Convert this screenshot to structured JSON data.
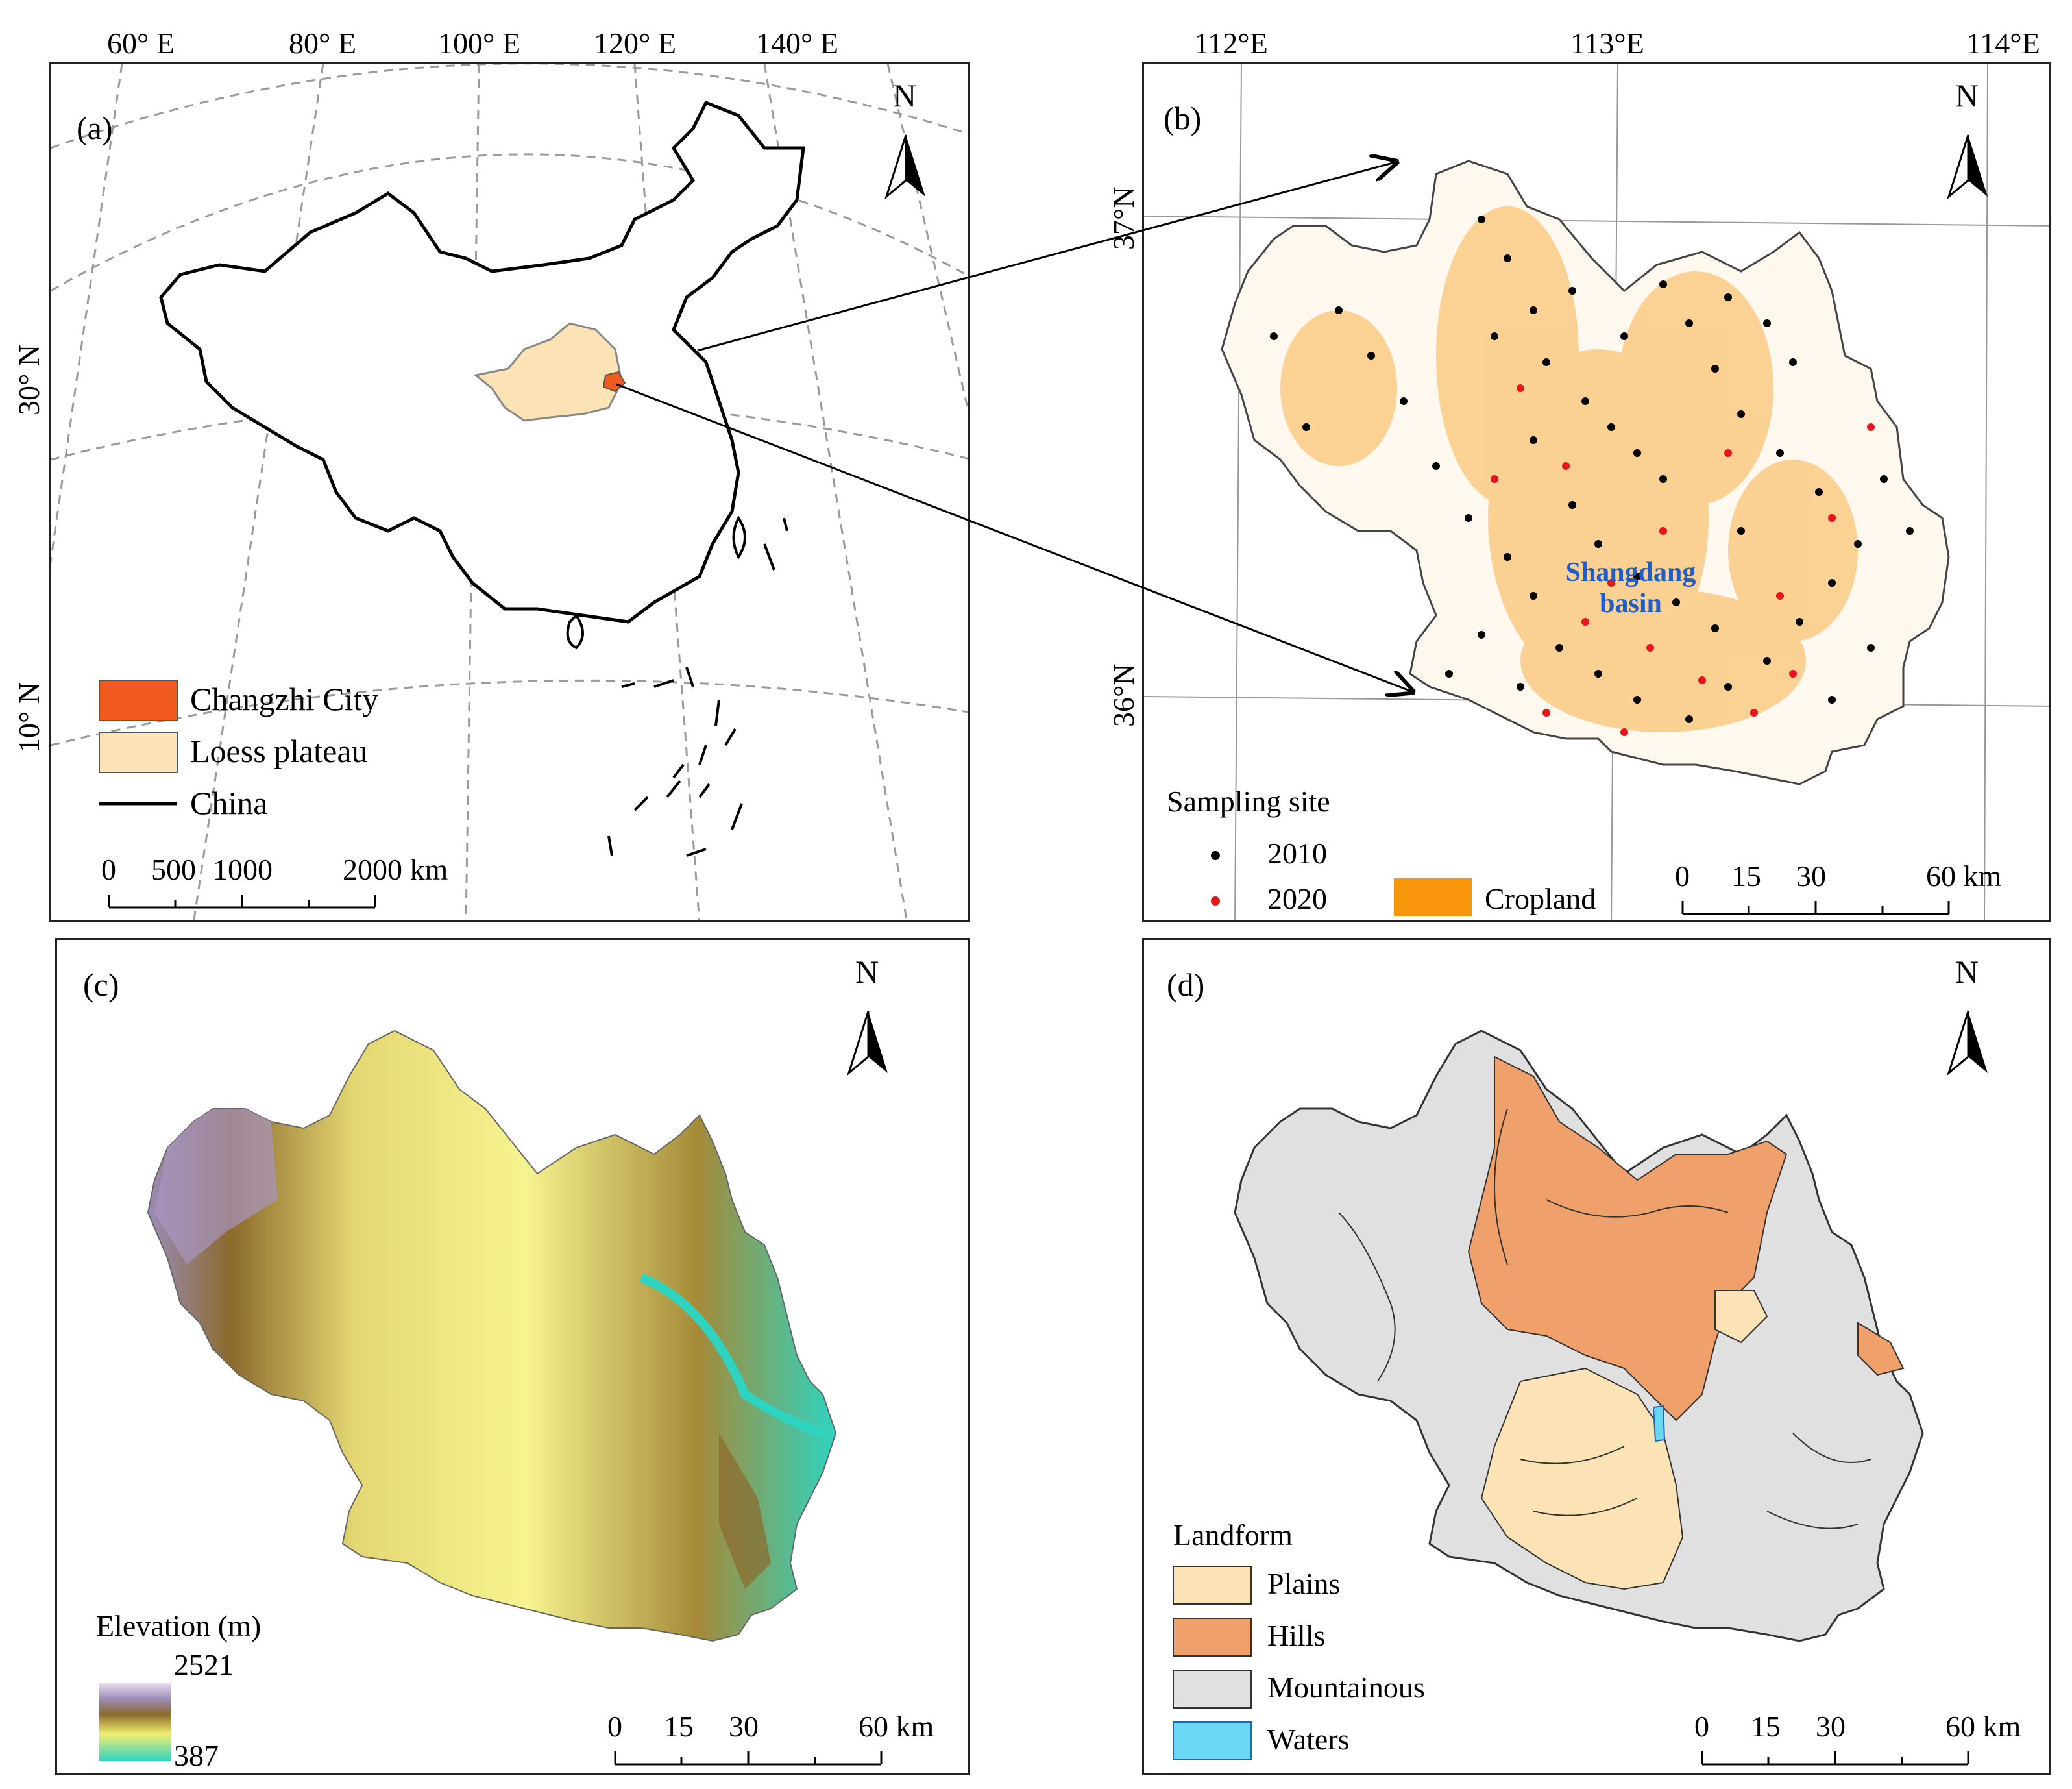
{
  "panel_a": {
    "label": "(a)",
    "lon_ticks": [
      "60° E",
      "80° E",
      "100° E",
      "120° E",
      "140° E"
    ],
    "lat_ticks": [
      "30° N",
      "10° N"
    ],
    "north": "N",
    "legend": [
      {
        "label": "Changzhi City",
        "color": "#f05a1e"
      },
      {
        "label": "Loess plateau",
        "color": "#fbe3b5"
      },
      {
        "label": "China",
        "color": "#000000"
      }
    ],
    "scale": {
      "labels": [
        "0",
        "500",
        "1000",
        "2000 km"
      ]
    }
  },
  "panel_b": {
    "label": "(b)",
    "lon_ticks": [
      "112°E",
      "113°E",
      "114°E"
    ],
    "lat_ticks": [
      "37°N",
      "36°N"
    ],
    "north": "N",
    "basin_label": "Shangdang basin",
    "legend_title": "Sampling site",
    "legend": [
      {
        "label": "2010",
        "color": "#000000"
      },
      {
        "label": "2020",
        "color": "#e8141e"
      },
      {
        "label": "Cropland",
        "color": "#f8950a"
      }
    ],
    "scale": {
      "labels": [
        "0",
        "15",
        "30",
        "60 km"
      ]
    }
  },
  "panel_c": {
    "label": "(c)",
    "north": "N",
    "legend_title": "Elevation (m)",
    "elev_max": "2521",
    "elev_min": "387",
    "scale": {
      "labels": [
        "0",
        "15",
        "30",
        "60 km"
      ]
    }
  },
  "panel_d": {
    "label": "(d)",
    "north": "N",
    "legend_title": "Landform",
    "legend": [
      {
        "label": "Plains",
        "color": "#fbe3b5"
      },
      {
        "label": "Hills",
        "color": "#f0a06a"
      },
      {
        "label": "Mountainous",
        "color": "#e0e0e0"
      },
      {
        "label": "Waters",
        "color": "#6ad8f5"
      }
    ],
    "scale": {
      "labels": [
        "0",
        "15",
        "30",
        "60 km"
      ]
    }
  }
}
